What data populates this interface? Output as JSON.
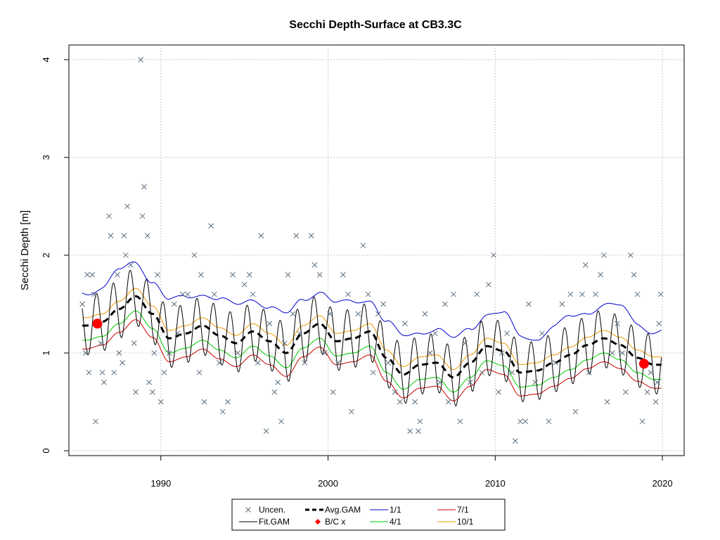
{
  "chart_data": {
    "type": "scatter",
    "title": "Secchi Depth-Surface at CB3.3C",
    "xlabel": "",
    "ylabel": "Secchi Depth [m]",
    "xlim": [
      1984.5,
      2021.3
    ],
    "ylim": [
      -0.05,
      4.15
    ],
    "x_ticks": [
      1990,
      2000,
      2010,
      2020
    ],
    "y_ticks": [
      0,
      1,
      2,
      3,
      4
    ],
    "grid": true,
    "legend_position": "bottom-center",
    "colors": {
      "uncen": "#5a6e7e",
      "fit_gam": "#000000",
      "avg_gam": "#000000",
      "bc": "#ff0000",
      "1/1": "#0000cc",
      "4/1": "#00cc00",
      "7/1": "#cc0000",
      "10/1": "#ee9900"
    },
    "legend": [
      {
        "key": "uncen",
        "label": "Uncen.",
        "symbol": "x"
      },
      {
        "key": "avg_gam",
        "label": "Avg.GAM",
        "symbol": "dash"
      },
      {
        "key": "1/1",
        "label": "1/1",
        "symbol": "line"
      },
      {
        "key": "7/1",
        "label": "7/1",
        "symbol": "line"
      },
      {
        "key": "fit_gam",
        "label": "Fit.GAM",
        "symbol": "line"
      },
      {
        "key": "bc",
        "label": "B/C x",
        "symbol": "diamond"
      },
      {
        "key": "4/1",
        "label": "4/1",
        "symbol": "line"
      },
      {
        "key": "10/1",
        "label": "10/1",
        "symbol": "line"
      }
    ],
    "avg_gam_knots": [
      [
        1985.5,
        1.28
      ],
      [
        1986.5,
        1.32
      ],
      [
        1987.5,
        1.45
      ],
      [
        1988.5,
        1.58
      ],
      [
        1989.5,
        1.4
      ],
      [
        1990.5,
        1.15
      ],
      [
        1991.5,
        1.2
      ],
      [
        1992.5,
        1.28
      ],
      [
        1993.5,
        1.18
      ],
      [
        1994.5,
        1.1
      ],
      [
        1995.5,
        1.22
      ],
      [
        1996.5,
        1.12
      ],
      [
        1997.5,
        1.0
      ],
      [
        1998.5,
        1.2
      ],
      [
        1999.5,
        1.3
      ],
      [
        2000.5,
        1.12
      ],
      [
        2001.5,
        1.15
      ],
      [
        2002.5,
        1.22
      ],
      [
        2003.5,
        0.95
      ],
      [
        2004.5,
        0.78
      ],
      [
        2005.5,
        0.88
      ],
      [
        2006.5,
        0.9
      ],
      [
        2007.5,
        0.75
      ],
      [
        2008.5,
        0.9
      ],
      [
        2009.5,
        1.07
      ],
      [
        2010.5,
        1.02
      ],
      [
        2011.5,
        0.8
      ],
      [
        2012.5,
        0.82
      ],
      [
        2013.5,
        0.9
      ],
      [
        2014.5,
        0.98
      ],
      [
        2015.5,
        1.08
      ],
      [
        2016.5,
        1.15
      ],
      [
        2017.5,
        1.08
      ],
      [
        2018.5,
        0.95
      ],
      [
        2019.5,
        0.88
      ],
      [
        2019.9,
        0.88
      ]
    ],
    "bc_points": [
      {
        "x": 1986.2,
        "y": 1.3
      },
      {
        "x": 2018.9,
        "y": 0.89
      }
    ],
    "observations": [
      {
        "x": 1985.3,
        "y": 1.5
      },
      {
        "x": 1985.5,
        "y": 1.0
      },
      {
        "x": 1985.6,
        "y": 1.8
      },
      {
        "x": 1985.9,
        "y": 1.8
      },
      {
        "x": 1985.7,
        "y": 0.8
      },
      {
        "x": 1986.0,
        "y": 1.6
      },
      {
        "x": 1986.1,
        "y": 0.3
      },
      {
        "x": 1986.4,
        "y": 1.1
      },
      {
        "x": 1986.5,
        "y": 0.8
      },
      {
        "x": 1986.6,
        "y": 0.7
      },
      {
        "x": 1986.9,
        "y": 2.4
      },
      {
        "x": 1987.0,
        "y": 2.2
      },
      {
        "x": 1987.2,
        "y": 0.8
      },
      {
        "x": 1987.4,
        "y": 1.8
      },
      {
        "x": 1987.5,
        "y": 1.0
      },
      {
        "x": 1987.7,
        "y": 0.9
      },
      {
        "x": 1987.8,
        "y": 2.2
      },
      {
        "x": 1987.9,
        "y": 2.0
      },
      {
        "x": 1988.0,
        "y": 2.5
      },
      {
        "x": 1988.2,
        "y": 1.9
      },
      {
        "x": 1988.4,
        "y": 1.1
      },
      {
        "x": 1988.5,
        "y": 0.6
      },
      {
        "x": 1988.8,
        "y": 4.0
      },
      {
        "x": 1988.9,
        "y": 2.4
      },
      {
        "x": 1989.0,
        "y": 2.7
      },
      {
        "x": 1989.2,
        "y": 2.2
      },
      {
        "x": 1989.3,
        "y": 0.7
      },
      {
        "x": 1989.5,
        "y": 0.6
      },
      {
        "x": 1989.6,
        "y": 1.0
      },
      {
        "x": 1989.8,
        "y": 1.8
      },
      {
        "x": 1990.0,
        "y": 0.5
      },
      {
        "x": 1990.2,
        "y": 0.8
      },
      {
        "x": 1990.5,
        "y": 1.0
      },
      {
        "x": 1990.8,
        "y": 1.5
      },
      {
        "x": 1991.0,
        "y": 1.2
      },
      {
        "x": 1991.3,
        "y": 1.6
      },
      {
        "x": 1991.6,
        "y": 1.6
      },
      {
        "x": 1992.0,
        "y": 2.0
      },
      {
        "x": 1992.3,
        "y": 0.8
      },
      {
        "x": 1992.4,
        "y": 1.8
      },
      {
        "x": 1992.6,
        "y": 0.5
      },
      {
        "x": 1993.0,
        "y": 2.3
      },
      {
        "x": 1993.2,
        "y": 1.6
      },
      {
        "x": 1993.5,
        "y": 0.9
      },
      {
        "x": 1993.7,
        "y": 0.4
      },
      {
        "x": 1994.0,
        "y": 0.5
      },
      {
        "x": 1994.3,
        "y": 1.8
      },
      {
        "x": 1994.6,
        "y": 1.0
      },
      {
        "x": 1995.0,
        "y": 1.7
      },
      {
        "x": 1995.3,
        "y": 1.8
      },
      {
        "x": 1995.5,
        "y": 1.6
      },
      {
        "x": 1995.8,
        "y": 0.9
      },
      {
        "x": 1996.0,
        "y": 2.2
      },
      {
        "x": 1996.3,
        "y": 0.2
      },
      {
        "x": 1996.5,
        "y": 1.3
      },
      {
        "x": 1996.8,
        "y": 0.6
      },
      {
        "x": 1997.0,
        "y": 0.7
      },
      {
        "x": 1997.2,
        "y": 0.3
      },
      {
        "x": 1997.4,
        "y": 1.1
      },
      {
        "x": 1997.6,
        "y": 1.8
      },
      {
        "x": 1997.9,
        "y": 1.4
      },
      {
        "x": 1998.1,
        "y": 2.2
      },
      {
        "x": 1998.3,
        "y": 1.2
      },
      {
        "x": 1998.6,
        "y": 0.9
      },
      {
        "x": 1999.0,
        "y": 2.2
      },
      {
        "x": 1999.2,
        "y": 1.9
      },
      {
        "x": 1999.5,
        "y": 1.8
      },
      {
        "x": 1999.8,
        "y": 1.0
      },
      {
        "x": 2000.1,
        "y": 1.4
      },
      {
        "x": 2000.3,
        "y": 0.6
      },
      {
        "x": 2000.6,
        "y": 0.9
      },
      {
        "x": 2000.9,
        "y": 1.8
      },
      {
        "x": 2001.2,
        "y": 1.6
      },
      {
        "x": 2001.4,
        "y": 0.4
      },
      {
        "x": 2001.8,
        "y": 1.4
      },
      {
        "x": 2002.1,
        "y": 2.1
      },
      {
        "x": 2002.4,
        "y": 1.6
      },
      {
        "x": 2002.7,
        "y": 0.8
      },
      {
        "x": 2003.0,
        "y": 1.4
      },
      {
        "x": 2003.3,
        "y": 1.5
      },
      {
        "x": 2003.6,
        "y": 0.9
      },
      {
        "x": 2004.0,
        "y": 0.6
      },
      {
        "x": 2004.3,
        "y": 0.5
      },
      {
        "x": 2004.6,
        "y": 1.3
      },
      {
        "x": 2004.9,
        "y": 0.2
      },
      {
        "x": 2005.2,
        "y": 0.5
      },
      {
        "x": 2005.4,
        "y": 0.2
      },
      {
        "x": 2005.5,
        "y": 0.3
      },
      {
        "x": 2005.8,
        "y": 1.4
      },
      {
        "x": 2006.1,
        "y": 1.0
      },
      {
        "x": 2006.4,
        "y": 1.2
      },
      {
        "x": 2006.7,
        "y": 0.7
      },
      {
        "x": 2007.0,
        "y": 1.5
      },
      {
        "x": 2007.2,
        "y": 0.5
      },
      {
        "x": 2007.5,
        "y": 1.6
      },
      {
        "x": 2007.9,
        "y": 0.3
      },
      {
        "x": 2008.2,
        "y": 1.1
      },
      {
        "x": 2008.5,
        "y": 0.7
      },
      {
        "x": 2008.9,
        "y": 1.6
      },
      {
        "x": 2009.2,
        "y": 0.8
      },
      {
        "x": 2009.6,
        "y": 1.7
      },
      {
        "x": 2009.9,
        "y": 2.0
      },
      {
        "x": 2010.2,
        "y": 0.6
      },
      {
        "x": 2010.4,
        "y": 1.0
      },
      {
        "x": 2010.7,
        "y": 1.2
      },
      {
        "x": 2011.0,
        "y": 0.8
      },
      {
        "x": 2011.2,
        "y": 0.1
      },
      {
        "x": 2011.5,
        "y": 0.3
      },
      {
        "x": 2011.8,
        "y": 0.3
      },
      {
        "x": 2012.0,
        "y": 1.5
      },
      {
        "x": 2012.4,
        "y": 0.7
      },
      {
        "x": 2012.8,
        "y": 1.2
      },
      {
        "x": 2013.2,
        "y": 0.3
      },
      {
        "x": 2013.6,
        "y": 0.9
      },
      {
        "x": 2014.0,
        "y": 1.5
      },
      {
        "x": 2014.5,
        "y": 1.6
      },
      {
        "x": 2014.8,
        "y": 0.4
      },
      {
        "x": 2015.2,
        "y": 1.6
      },
      {
        "x": 2015.4,
        "y": 1.9
      },
      {
        "x": 2015.6,
        "y": 0.8
      },
      {
        "x": 2016.0,
        "y": 1.6
      },
      {
        "x": 2016.3,
        "y": 1.8
      },
      {
        "x": 2016.5,
        "y": 2.0
      },
      {
        "x": 2016.7,
        "y": 0.5
      },
      {
        "x": 2017.0,
        "y": 1.0
      },
      {
        "x": 2017.3,
        "y": 1.3
      },
      {
        "x": 2017.6,
        "y": 1.0
      },
      {
        "x": 2017.8,
        "y": 0.6
      },
      {
        "x": 2018.1,
        "y": 2.0
      },
      {
        "x": 2018.3,
        "y": 1.8
      },
      {
        "x": 2018.5,
        "y": 1.6
      },
      {
        "x": 2018.8,
        "y": 0.3
      },
      {
        "x": 2019.1,
        "y": 0.6
      },
      {
        "x": 2019.3,
        "y": 0.8
      },
      {
        "x": 2019.6,
        "y": 0.5
      },
      {
        "x": 2019.8,
        "y": 1.3
      },
      {
        "x": 2019.9,
        "y": 1.6
      },
      {
        "x": 2019.7,
        "y": 0.7
      }
    ]
  }
}
